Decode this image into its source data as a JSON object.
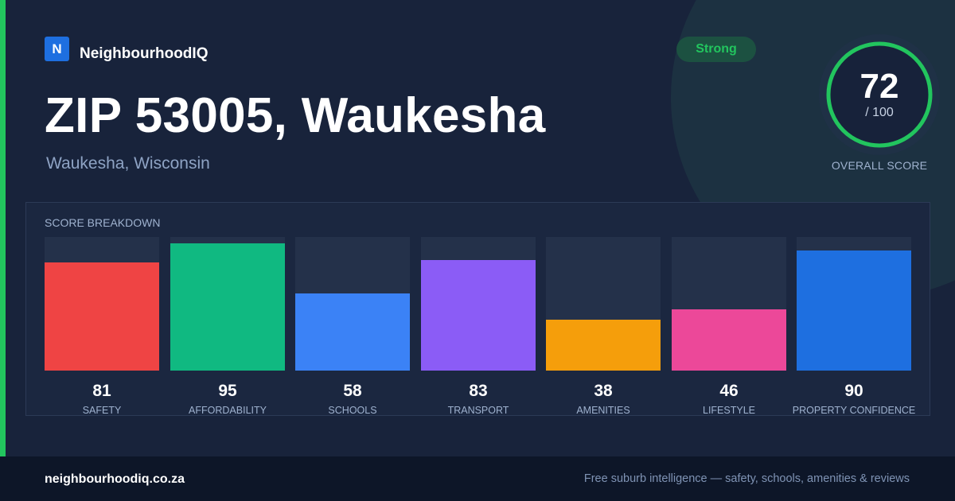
{
  "brand": {
    "logo_letter": "N",
    "name": "NeighbourhoodIQ"
  },
  "header": {
    "title": "ZIP 53005, Waukesha",
    "subtitle": "Waukesha, Wisconsin",
    "badge": "Strong"
  },
  "overall": {
    "score": "72",
    "denominator": "/ 100",
    "label": "OVERALL SCORE",
    "value": 72,
    "max": 100
  },
  "breakdown": {
    "heading": "SCORE BREAKDOWN"
  },
  "chart_data": {
    "type": "bar",
    "title": "SCORE BREAKDOWN",
    "categories": [
      "SAFETY",
      "AFFORDABILITY",
      "SCHOOLS",
      "TRANSPORT",
      "AMENITIES",
      "LIFESTYLE",
      "PROPERTY CONFIDENCE"
    ],
    "values": [
      81,
      95,
      58,
      83,
      38,
      46,
      90
    ],
    "colors": [
      "#ef4444",
      "#10b981",
      "#3b82f6",
      "#8b5cf6",
      "#f59e0b",
      "#ec4899",
      "#1e6fe0"
    ],
    "ylim": [
      0,
      100
    ],
    "grid": false
  },
  "colors": {
    "accent": "#22c55e",
    "brand": "#1e6fe0",
    "background": "#18233b"
  },
  "footer": {
    "url": "neighbourhoodiq.co.za",
    "tagline": "Free suburb intelligence — safety, schools, amenities & reviews"
  }
}
